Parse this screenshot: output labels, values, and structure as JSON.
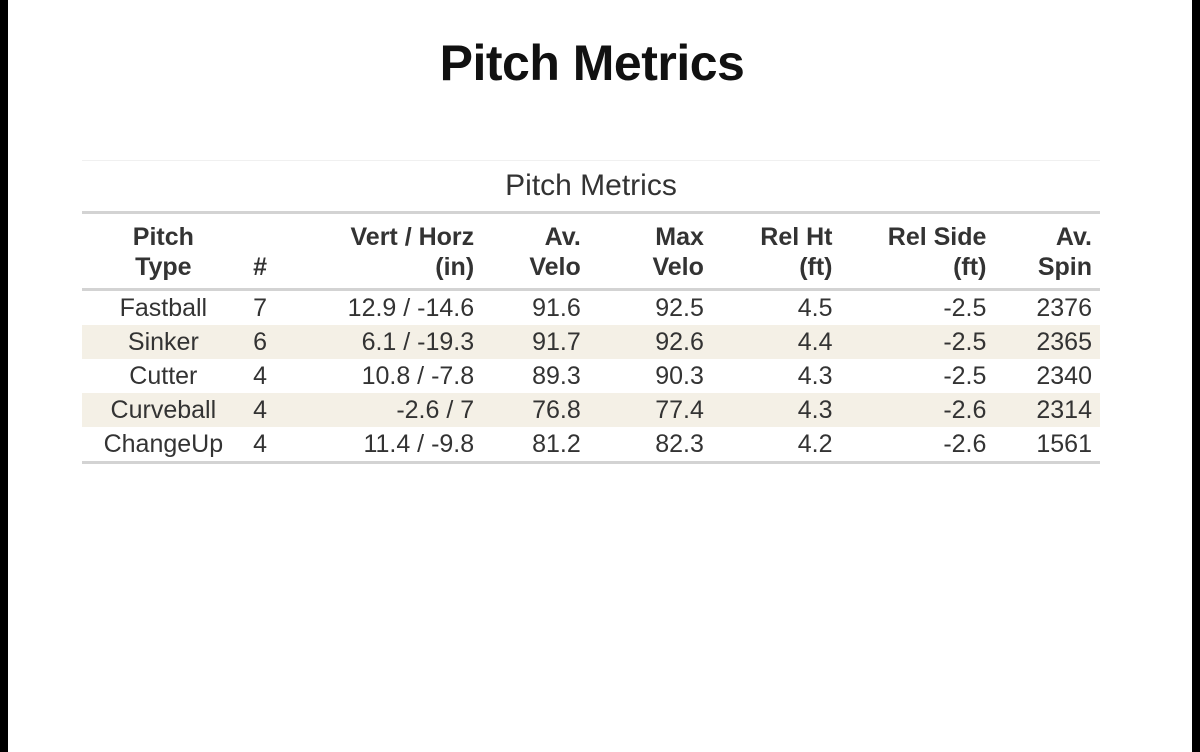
{
  "page": {
    "title": "Pitch Metrics"
  },
  "table": {
    "caption": "Pitch Metrics",
    "headers": [
      {
        "line1": "Pitch",
        "line2": "Type"
      },
      {
        "line1": "",
        "line2": "#"
      },
      {
        "line1": "Vert / Horz",
        "line2": "(in)"
      },
      {
        "line1": "Av.",
        "line2": "Velo"
      },
      {
        "line1": "Max",
        "line2": "Velo"
      },
      {
        "line1": "Rel Ht",
        "line2": "(ft)"
      },
      {
        "line1": "Rel Side",
        "line2": "(ft)"
      },
      {
        "line1": "Av.",
        "line2": "Spin"
      }
    ],
    "rows": [
      [
        "Fastball",
        "7",
        "12.9 / -14.6",
        "91.6",
        "92.5",
        "4.5",
        "-2.5",
        "2376"
      ],
      [
        "Sinker",
        "6",
        "6.1 / -19.3",
        "91.7",
        "92.6",
        "4.4",
        "-2.5",
        "2365"
      ],
      [
        "Cutter",
        "4",
        "10.8 / -7.8",
        "89.3",
        "90.3",
        "4.3",
        "-2.5",
        "2340"
      ],
      [
        "Curveball",
        "4",
        "-2.6 / 7",
        "76.8",
        "77.4",
        "4.3",
        "-2.6",
        "2314"
      ],
      [
        "ChangeUp",
        "4",
        "11.4 / -9.8",
        "81.2",
        "82.3",
        "4.2",
        "-2.6",
        "1561"
      ]
    ]
  },
  "colors": {
    "stripe": "#f4f0e6",
    "rule": "#d3d3d3",
    "text": "#333333"
  }
}
